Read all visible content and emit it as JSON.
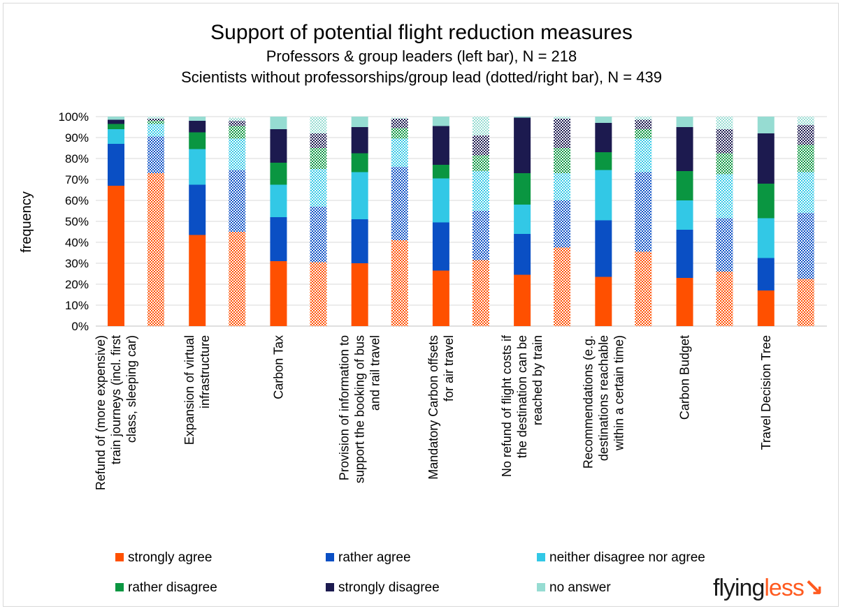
{
  "chart_data": {
    "type": "bar",
    "stacked": true,
    "title": "Support of potential flight reduction measures",
    "subtitle": [
      "Professors & group leaders (left bar), N = 218",
      "Scientists without professorships/group lead (dotted/right bar), N = 439"
    ],
    "ylabel": "frequency",
    "ylim": [
      0,
      100
    ],
    "yticks": [
      "0%",
      "10%",
      "20%",
      "30%",
      "40%",
      "50%",
      "60%",
      "70%",
      "80%",
      "90%",
      "100%"
    ],
    "grid": true,
    "legend_position": "bottom",
    "categories": [
      "Refund of (more expensive) train journeys (incl. first class, sleeping car)",
      "Expansion of virtual infrastructure",
      "Carbon Tax",
      "Provision of information to support the booking of bus and rail travel",
      "Mandatory Carbon offsets for air travel",
      "No refund of flight costs if the destination can be reached by train",
      "Recommendations (e.g. destinations reachable within a certain time)",
      "Carbon Budget",
      "Travel Decision Tree"
    ],
    "category_label_lines": [
      [
        "Refund of (more expensive)",
        "train journeys (incl. first",
        "class, sleeping car)"
      ],
      [
        "Expansion of virtual",
        "infrastructure"
      ],
      [
        "Carbon Tax"
      ],
      [
        "Provision of information to",
        "support the booking of bus",
        "and rail travel"
      ],
      [
        "Mandatory Carbon offsets",
        "for air travel"
      ],
      [
        "No refund of flight costs if",
        "the destination can be",
        "reached by train"
      ],
      [
        "Recommendations (e.g.",
        "destinations reachable",
        "within a certain time)"
      ],
      [
        "Carbon Budget"
      ],
      [
        "Travel Decision Tree"
      ]
    ],
    "groups": [
      "Professors & group leaders",
      "Scientists without professorships/group lead"
    ],
    "series": [
      {
        "name": "strongly agree",
        "color": "#ff5000",
        "values": [
          [
            67,
            73
          ],
          [
            43.5,
            45
          ],
          [
            31,
            30.5
          ],
          [
            30,
            41
          ],
          [
            26.5,
            31.5
          ],
          [
            24.5,
            37.5
          ],
          [
            23.5,
            35.5
          ],
          [
            23,
            26
          ],
          [
            17,
            22.5
          ]
        ]
      },
      {
        "name": "rather agree",
        "color": "#0a4fc4",
        "values": [
          [
            20,
            17.5
          ],
          [
            24,
            29.5
          ],
          [
            21,
            26.5
          ],
          [
            21,
            35
          ],
          [
            23,
            23.5
          ],
          [
            19.5,
            22.5
          ],
          [
            27,
            38
          ],
          [
            23,
            25.5
          ],
          [
            15.5,
            31.5
          ]
        ]
      },
      {
        "name": "neither disagree nor agree",
        "color": "#32c8e6",
        "values": [
          [
            7,
            6
          ],
          [
            17,
            15
          ],
          [
            15.5,
            18
          ],
          [
            22.5,
            13.5
          ],
          [
            21,
            19
          ],
          [
            14,
            13
          ],
          [
            24,
            16
          ],
          [
            14,
            21
          ],
          [
            19,
            19.5
          ]
        ]
      },
      {
        "name": "rather disagree",
        "color": "#0a9641",
        "values": [
          [
            2.5,
            1.5
          ],
          [
            8,
            6
          ],
          [
            10.5,
            10
          ],
          [
            9,
            5
          ],
          [
            6.5,
            7.5
          ],
          [
            15,
            12
          ],
          [
            8.5,
            4.5
          ],
          [
            14,
            10
          ],
          [
            16.5,
            13
          ]
        ]
      },
      {
        "name": "strongly disagree",
        "color": "#1c1a4f",
        "values": [
          [
            2,
            1
          ],
          [
            5.5,
            2.5
          ],
          [
            16,
            7
          ],
          [
            12.5,
            4.5
          ],
          [
            18.5,
            9.5
          ],
          [
            26.5,
            14
          ],
          [
            14,
            4.5
          ],
          [
            21,
            11.5
          ],
          [
            24,
            9.5
          ]
        ]
      },
      {
        "name": "no answer",
        "color": "#96dcd2",
        "values": [
          [
            1.5,
            1
          ],
          [
            2,
            1.5
          ],
          [
            6,
            8
          ],
          [
            5,
            0.5
          ],
          [
            4.5,
            9
          ],
          [
            0.5,
            1
          ],
          [
            3,
            1.5
          ],
          [
            5,
            6
          ],
          [
            8,
            4
          ]
        ]
      }
    ]
  },
  "logo": {
    "part1": "flying",
    "part2": "less",
    "mark": "↘"
  }
}
